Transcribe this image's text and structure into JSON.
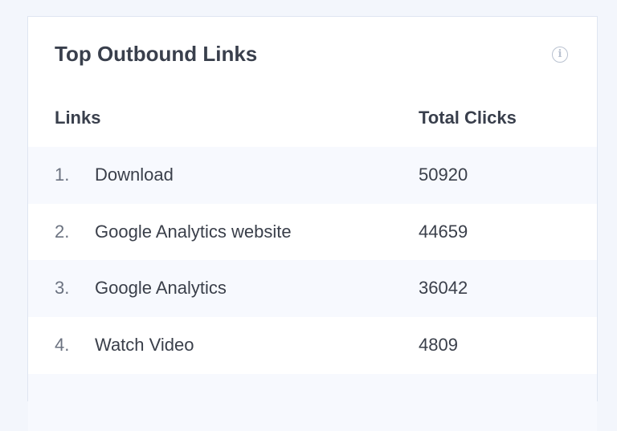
{
  "widget": {
    "title": "Top Outbound Links",
    "info_icon": "info-circle-icon",
    "columns": [
      "Links",
      "Total Clicks"
    ],
    "rows": [
      {
        "rank": "1.",
        "link": "Download",
        "clicks": "50920"
      },
      {
        "rank": "2.",
        "link": "Google Analytics website",
        "clicks": "44659"
      },
      {
        "rank": "3.",
        "link": "Google Analytics",
        "clicks": "36042"
      },
      {
        "rank": "4.",
        "link": "Watch Video",
        "clicks": "4809"
      }
    ]
  }
}
